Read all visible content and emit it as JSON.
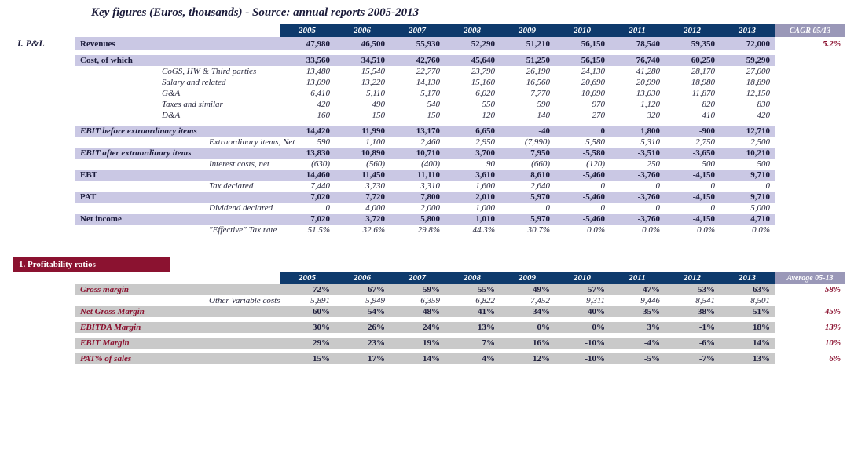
{
  "title": "Key figures (Euros, thousands) - Source: annual reports 2005-2013",
  "years": [
    "2005",
    "2006",
    "2007",
    "2008",
    "2009",
    "2010",
    "2011",
    "2012",
    "2013"
  ],
  "cagr_header": "CAGR 05/13",
  "avg_header": "Average 05-13",
  "section1": {
    "heading": "I. P&L",
    "rows": [
      {
        "k": "rev",
        "label": "Revenues",
        "cls": "bold",
        "band": "violet",
        "v": [
          "47,980",
          "46,500",
          "55,930",
          "52,290",
          "51,210",
          "56,150",
          "78,540",
          "59,350",
          "72,000"
        ],
        "cagr": "5.2%",
        "bold": true
      },
      {
        "k": "sp1",
        "spacer": true
      },
      {
        "k": "cost",
        "label": "Cost, of which",
        "cls": "bold",
        "band": "violet",
        "v": [
          "33,560",
          "34,510",
          "42,760",
          "45,640",
          "51,250",
          "56,150",
          "76,740",
          "60,250",
          "59,290"
        ],
        "bold": true
      },
      {
        "k": "cogs",
        "label": "CoGS, HW & Third parties",
        "cls": "sub",
        "v": [
          "13,480",
          "15,540",
          "22,770",
          "23,790",
          "26,190",
          "24,130",
          "41,280",
          "28,170",
          "27,000"
        ]
      },
      {
        "k": "sal",
        "label": "Salary and related",
        "cls": "sub",
        "v": [
          "13,090",
          "13,220",
          "14,130",
          "15,160",
          "16,560",
          "20,690",
          "20,990",
          "18,980",
          "18,890"
        ]
      },
      {
        "k": "ga",
        "label": "G&A",
        "cls": "sub",
        "v": [
          "6,410",
          "5,110",
          "5,170",
          "6,020",
          "7,770",
          "10,090",
          "13,030",
          "11,870",
          "12,150"
        ]
      },
      {
        "k": "tax",
        "label": "Taxes and similar",
        "cls": "sub",
        "v": [
          "420",
          "490",
          "540",
          "550",
          "590",
          "970",
          "1,120",
          "820",
          "830"
        ]
      },
      {
        "k": "da",
        "label": "D&A",
        "cls": "sub",
        "v": [
          "160",
          "150",
          "150",
          "120",
          "140",
          "270",
          "320",
          "410",
          "420"
        ]
      },
      {
        "k": "sp2",
        "spacer": true
      },
      {
        "k": "ebitb",
        "label": "EBIT before extraordinary items",
        "cls": "boldi",
        "band": "violet",
        "v": [
          "14,420",
          "11,990",
          "13,170",
          "6,650",
          "-40",
          "0",
          "1,800",
          "-900",
          "12,710"
        ],
        "bold": true
      },
      {
        "k": "exti",
        "label": "Extraordinary items, Net",
        "cls": "sub2",
        "v": [
          "590",
          "1,100",
          "2,460",
          "2,950",
          "(7,990)",
          "5,580",
          "5,310",
          "2,750",
          "2,500"
        ]
      },
      {
        "k": "ebita",
        "label": "EBIT after extraordinary items",
        "cls": "boldi",
        "band": "violet",
        "v": [
          "13,830",
          "10,890",
          "10,710",
          "3,700",
          "7,950",
          "-5,580",
          "-3,510",
          "-3,650",
          "10,210"
        ],
        "bold": true
      },
      {
        "k": "intc",
        "label": "Interest costs, net",
        "cls": "sub2",
        "v": [
          "(630)",
          "(560)",
          "(400)",
          "90",
          "(660)",
          "(120)",
          "250",
          "500",
          "500"
        ]
      },
      {
        "k": "ebt",
        "label": "EBT",
        "cls": "bold",
        "band": "violet",
        "v": [
          "14,460",
          "11,450",
          "11,110",
          "3,610",
          "8,610",
          "-5,460",
          "-3,760",
          "-4,150",
          "9,710"
        ],
        "bold": true
      },
      {
        "k": "taxd",
        "label": "Tax declared",
        "cls": "sub2",
        "v": [
          "7,440",
          "3,730",
          "3,310",
          "1,600",
          "2,640",
          "0",
          "0",
          "0",
          "0"
        ]
      },
      {
        "k": "pat",
        "label": "PAT",
        "cls": "bold",
        "band": "violet",
        "v": [
          "7,020",
          "7,720",
          "7,800",
          "2,010",
          "5,970",
          "-5,460",
          "-3,760",
          "-4,150",
          "9,710"
        ],
        "bold": true
      },
      {
        "k": "divd",
        "label": "Dividend declared",
        "cls": "sub2",
        "v": [
          "0",
          "4,000",
          "2,000",
          "1,000",
          "0",
          "0",
          "0",
          "0",
          "5,000"
        ]
      },
      {
        "k": "ni",
        "label": "Net income",
        "cls": "bold",
        "band": "violet",
        "v": [
          "7,020",
          "3,720",
          "5,800",
          "1,010",
          "5,970",
          "-5,460",
          "-3,760",
          "-4,150",
          "4,710"
        ],
        "bold": true
      },
      {
        "k": "etr",
        "label": "\"Effective\" Tax rate",
        "cls": "sub2",
        "v": [
          "51.5%",
          "32.6%",
          "29.8%",
          "44.3%",
          "30.7%",
          "0.0%",
          "0.0%",
          "0.0%",
          "0.0%"
        ]
      }
    ]
  },
  "section2": {
    "heading": "1. Profitability ratios",
    "rows": [
      {
        "k": "gm",
        "label": "Gross margin",
        "red": true,
        "band": "gray",
        "v": [
          "72%",
          "67%",
          "59%",
          "55%",
          "49%",
          "57%",
          "47%",
          "53%",
          "63%"
        ],
        "avg": "58%",
        "bold": true,
        "ital": true
      },
      {
        "k": "ovc",
        "label": "Other Variable costs",
        "cls": "sub2",
        "v": [
          "5,891",
          "5,949",
          "6,359",
          "6,822",
          "7,452",
          "9,311",
          "9,446",
          "8,541",
          "8,501"
        ]
      },
      {
        "k": "ngm",
        "label": "Net Gross Margin",
        "red": true,
        "ital": true,
        "band": "gray",
        "v": [
          "60%",
          "54%",
          "48%",
          "41%",
          "34%",
          "40%",
          "35%",
          "38%",
          "51%"
        ],
        "avg": "45%",
        "bold": true
      },
      {
        "k": "sp3",
        "spacer": true
      },
      {
        "k": "ebm",
        "label": "EBITDA Margin",
        "red": true,
        "ital": true,
        "band": "gray",
        "v": [
          "30%",
          "26%",
          "24%",
          "13%",
          "0%",
          "0%",
          "3%",
          "-1%",
          "18%"
        ],
        "avg": "13%",
        "bold": true
      },
      {
        "k": "sp4",
        "spacer": true
      },
      {
        "k": "eim",
        "label": "EBIT Margin",
        "red": true,
        "ital": true,
        "band": "gray",
        "v": [
          "29%",
          "23%",
          "19%",
          "7%",
          "16%",
          "-10%",
          "-4%",
          "-6%",
          "14%"
        ],
        "avg": "10%",
        "bold": true
      },
      {
        "k": "sp5",
        "spacer": true
      },
      {
        "k": "pats",
        "label": "PAT% of sales",
        "red": true,
        "ital": true,
        "band": "gray",
        "v": [
          "15%",
          "17%",
          "14%",
          "4%",
          "12%",
          "-10%",
          "-5%",
          "-7%",
          "13%"
        ],
        "avg": "6%",
        "bold": true
      }
    ]
  },
  "colors": {
    "year_header_bg": "#0e3a6c",
    "cagr_header_bg": "#9a98b8",
    "violet_band": "#cac8e4",
    "gray_band": "#c9c9c9",
    "wine": "#8b1230",
    "text": "#1b1b3a"
  }
}
